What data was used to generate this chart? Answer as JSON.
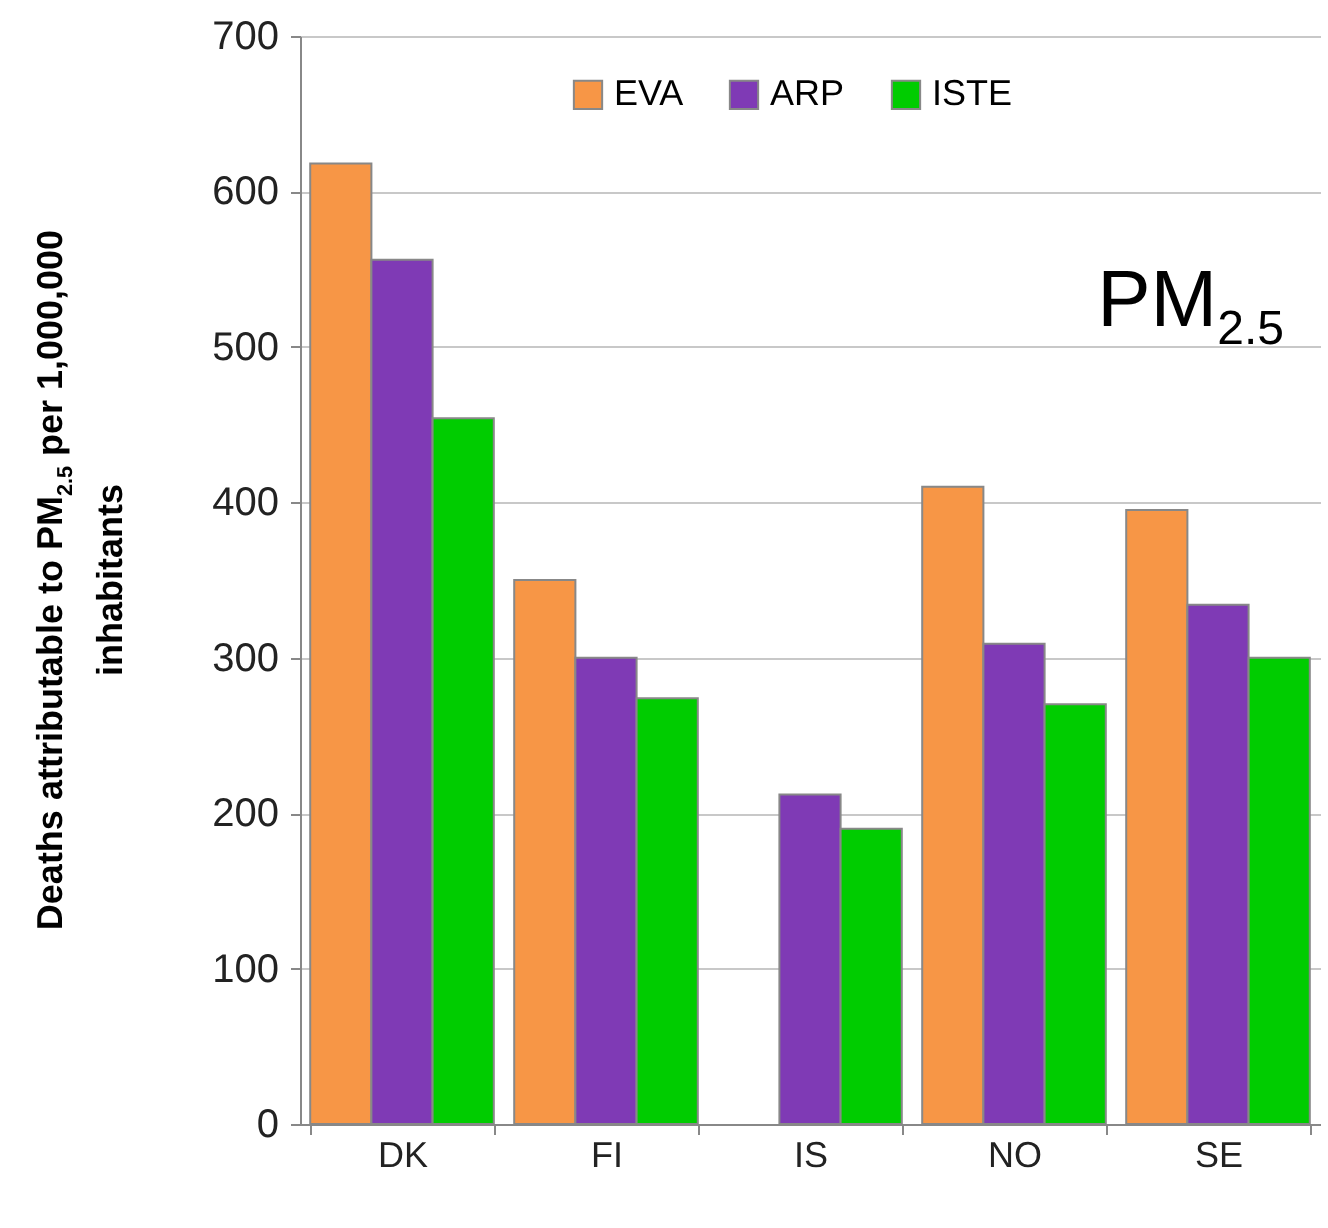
{
  "chart_data": {
    "type": "bar",
    "ylabel": "Deaths attributable to PM$_{2.5}$ per 1,000,000 inhabitants",
    "annotations": [
      "PM$_{2.5}$"
    ],
    "categories": [
      "DK",
      "FI",
      "IS",
      "NO",
      "SE"
    ],
    "series": [
      {
        "name": "EVA",
        "color": "#f79646",
        "values": [
          618,
          350,
          null,
          410,
          395
        ]
      },
      {
        "name": "ARP",
        "color": "#7f3ab5",
        "values": [
          556,
          300,
          212,
          309,
          334
        ]
      },
      {
        "name": "ISTE",
        "color": "#00cc00",
        "values": [
          454,
          274,
          190,
          270,
          300
        ]
      }
    ],
    "ylim": [
      0,
      700
    ],
    "yticks": [
      0,
      100,
      200,
      300,
      400,
      500,
      600,
      700
    ],
    "grid": "y",
    "legend": "top"
  }
}
